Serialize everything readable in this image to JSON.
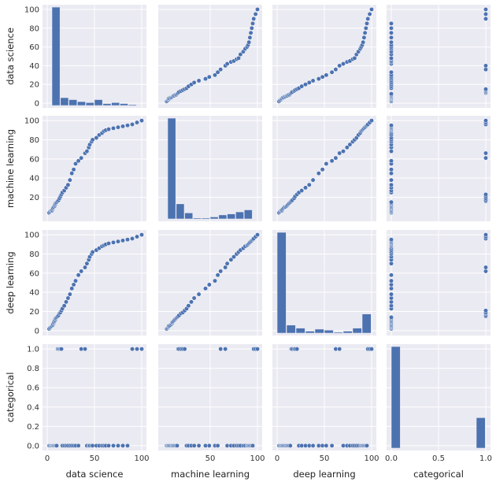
{
  "chart_data": {
    "type": "pairplot",
    "variables": [
      "data science",
      "machine learning",
      "deep learning",
      "categorical"
    ],
    "colors": {
      "panel_bg": "#eaeaf2",
      "grid": "#ffffff",
      "marker": "#4c72b0",
      "bar": "#4c72b0",
      "marker_edge": "#ffffff"
    },
    "axis_ranges": {
      "data science": [
        0,
        100
      ],
      "machine learning": [
        0,
        100
      ],
      "deep learning": [
        0,
        100
      ],
      "categorical": [
        0,
        1
      ]
    },
    "ticks": {
      "x": {
        "data science": [
          0,
          50,
          100
        ],
        "machine learning": [
          50,
          100
        ],
        "deep learning": [
          0,
          50,
          100
        ],
        "categorical": [
          0.0,
          0.5,
          1.0
        ]
      },
      "x_labels": {
        "data science": [
          "0",
          "50",
          "100"
        ],
        "machine learning": [
          "50",
          "100"
        ],
        "deep learning": [
          "0",
          "50",
          "100"
        ],
        "categorical": [
          "0.0",
          "0.5",
          "1.0"
        ]
      },
      "y": {
        "data science": [
          0,
          20,
          40,
          60,
          80,
          100
        ],
        "machine learning": [
          20,
          40,
          60,
          80,
          100
        ],
        "deep learning": [
          0,
          20,
          40,
          60,
          80,
          100
        ],
        "categorical": [
          0.0,
          0.2,
          0.4,
          0.6,
          0.8,
          1.0
        ]
      },
      "y_labels": {
        "data science": [
          "0",
          "20",
          "40",
          "60",
          "80",
          "100"
        ],
        "machine learning": [
          "20",
          "40",
          "60",
          "80",
          "100"
        ],
        "deep learning": [
          "0",
          "20",
          "40",
          "60",
          "80",
          "100"
        ],
        "categorical": [
          "0.0",
          "0.2",
          "0.4",
          "0.6",
          "0.8",
          "1.0"
        ]
      }
    },
    "histograms": {
      "data science": {
        "bins": [
          5,
          14,
          23,
          32,
          41,
          50,
          59,
          68,
          77,
          86,
          95
        ],
        "counts": [
          100,
          8,
          6,
          4,
          3,
          6,
          2,
          3,
          2,
          1
        ]
      },
      "machine learning": {
        "bins": [
          5,
          14,
          23,
          32,
          41,
          50,
          59,
          68,
          77,
          86,
          95
        ],
        "counts": [
          100,
          15,
          6,
          1,
          1,
          2,
          4,
          5,
          7,
          9
        ]
      },
      "deep learning": {
        "bins": [
          0,
          10,
          20,
          30,
          40,
          50,
          60,
          70,
          80,
          90,
          100
        ],
        "counts": [
          100,
          8,
          5,
          2,
          4,
          3,
          1,
          2,
          5,
          19
        ]
      },
      "categorical": {
        "bins": [
          0,
          0.1,
          0.2,
          0.3,
          0.4,
          0.5,
          0.6,
          0.7,
          0.8,
          0.9,
          1.0
        ],
        "counts": [
          100,
          0,
          0,
          0,
          0,
          0,
          0,
          0,
          0,
          30
        ]
      }
    },
    "points": {
      "data science": [
        2,
        3,
        4,
        5,
        5,
        6,
        6,
        7,
        7,
        8,
        8,
        9,
        9,
        10,
        11,
        12,
        13,
        14,
        15,
        16,
        18,
        20,
        22,
        24,
        26,
        28,
        30,
        33,
        36,
        40,
        42,
        44,
        45,
        47,
        48,
        52,
        55,
        58,
        60,
        62,
        65,
        70,
        75,
        80,
        85,
        90,
        95,
        100
      ],
      "machine learning": [
        4,
        5,
        6,
        6,
        7,
        8,
        9,
        10,
        10,
        11,
        12,
        13,
        14,
        15,
        16,
        17,
        19,
        21,
        23,
        25,
        27,
        30,
        33,
        38,
        45,
        49,
        55,
        58,
        61,
        66,
        68,
        72,
        75,
        78,
        80,
        82,
        85,
        87,
        89,
        90,
        91,
        92,
        93,
        94,
        95,
        96,
        98,
        100
      ],
      "deep learning": [
        2,
        3,
        4,
        5,
        5,
        6,
        7,
        8,
        9,
        10,
        11,
        12,
        13,
        14,
        15,
        16,
        18,
        19,
        21,
        23,
        26,
        30,
        34,
        38,
        44,
        48,
        52,
        58,
        62,
        66,
        70,
        74,
        77,
        80,
        82,
        84,
        86,
        88,
        89,
        90,
        91,
        92,
        93,
        94,
        95,
        96,
        98,
        100
      ],
      "categorical": [
        0,
        0,
        0,
        0,
        0,
        0,
        0,
        0,
        0,
        0,
        0,
        0,
        0,
        0,
        1,
        1,
        1,
        1,
        1,
        0,
        0,
        0,
        0,
        0,
        0,
        0,
        0,
        0,
        1,
        1,
        0,
        0,
        0,
        0,
        0,
        0,
        0,
        0,
        0,
        0,
        0,
        0,
        0,
        0,
        0,
        1,
        1,
        1
      ]
    }
  }
}
